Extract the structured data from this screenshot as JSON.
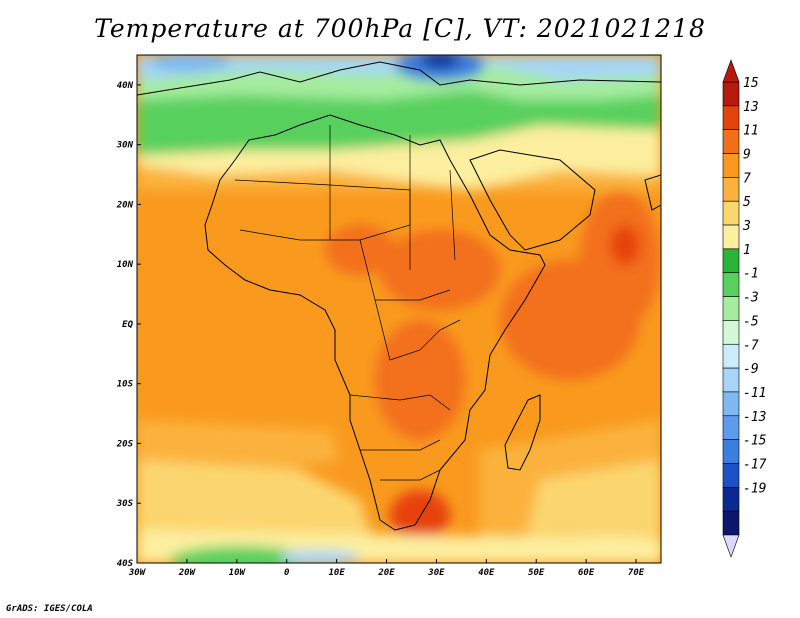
{
  "title": "Temperature at 700hPa [C], VT: 2021021218",
  "credit": "GrADS: IGES/COLA",
  "map": {
    "lon_range": [
      -30,
      75
    ],
    "lat_range": [
      -40,
      45
    ],
    "lon_ticks": [
      "30W",
      "20W",
      "10W",
      "0",
      "10E",
      "20E",
      "30E",
      "40E",
      "50E",
      "60E",
      "70E"
    ],
    "lat_ticks": [
      "40S",
      "30S",
      "20S",
      "10S",
      "EQ",
      "10N",
      "20N",
      "30N",
      "40N"
    ],
    "lat_tick_values": [
      -40,
      -30,
      -20,
      -10,
      0,
      10,
      20,
      30,
      40
    ],
    "lon_tick_values": [
      -30,
      -20,
      -10,
      0,
      10,
      20,
      30,
      40,
      50,
      60,
      70
    ]
  },
  "colorbar": {
    "labels": [
      "15",
      "13",
      "11",
      "9",
      "7",
      "5",
      "3",
      "1",
      "-1",
      "-3",
      "-5",
      "-7",
      "-9",
      "-11",
      "-13",
      "-15",
      "-17",
      "-19"
    ],
    "colors": [
      "#b51a0d",
      "#e6420f",
      "#f3701a",
      "#f99a1e",
      "#fbb23c",
      "#fbd66f",
      "#fcef9f",
      "#2db339",
      "#59d05d",
      "#a5ec9f",
      "#d2f9d5",
      "#ccecfb",
      "#a6d5f7",
      "#7fb9f1",
      "#5c9deb",
      "#3a7ee0",
      "#1c52c8",
      "#0b2a90",
      "#0c176b"
    ],
    "top_arrow_color": "#b51a0d",
    "bottom_arrow_color": "#ddd8ff"
  }
}
